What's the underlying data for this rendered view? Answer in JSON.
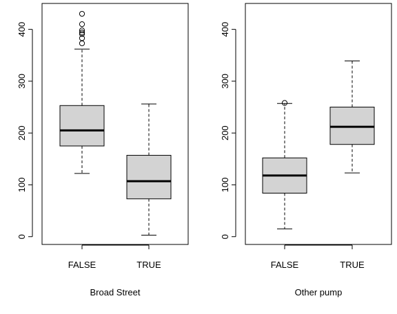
{
  "chart_data": [
    {
      "type": "box",
      "title": "",
      "xlabel": "Broad Street",
      "ylabel": "",
      "ylim": [
        -15,
        450
      ],
      "yticks": [
        0,
        100,
        200,
        300,
        400
      ],
      "grid": false,
      "categories": [
        "FALSE",
        "TRUE"
      ],
      "boxes": [
        {
          "category": "FALSE",
          "whisker_low": 122,
          "q1": 175,
          "median": 205,
          "q3": 253,
          "whisker_high": 362,
          "outliers": [
            373,
            383,
            391,
            394,
            398,
            410,
            430
          ]
        },
        {
          "category": "TRUE",
          "whisker_low": 3,
          "q1": 73,
          "median": 107,
          "q3": 157,
          "whisker_high": 256,
          "outliers": []
        }
      ],
      "colors": {
        "box_fill": "#d3d3d3",
        "stroke": "#000000"
      }
    },
    {
      "type": "box",
      "title": "",
      "xlabel": "Other pump",
      "ylabel": "",
      "ylim": [
        -15,
        450
      ],
      "yticks": [
        0,
        100,
        200,
        300,
        400
      ],
      "grid": false,
      "categories": [
        "FALSE",
        "TRUE"
      ],
      "boxes": [
        {
          "category": "FALSE",
          "whisker_low": 15,
          "q1": 84,
          "median": 118,
          "q3": 152,
          "whisker_high": 257,
          "outliers": [
            258
          ]
        },
        {
          "category": "TRUE",
          "whisker_low": 123,
          "q1": 178,
          "median": 212,
          "q3": 250,
          "whisker_high": 339,
          "outliers": []
        }
      ],
      "colors": {
        "box_fill": "#d3d3d3",
        "stroke": "#000000"
      }
    }
  ]
}
